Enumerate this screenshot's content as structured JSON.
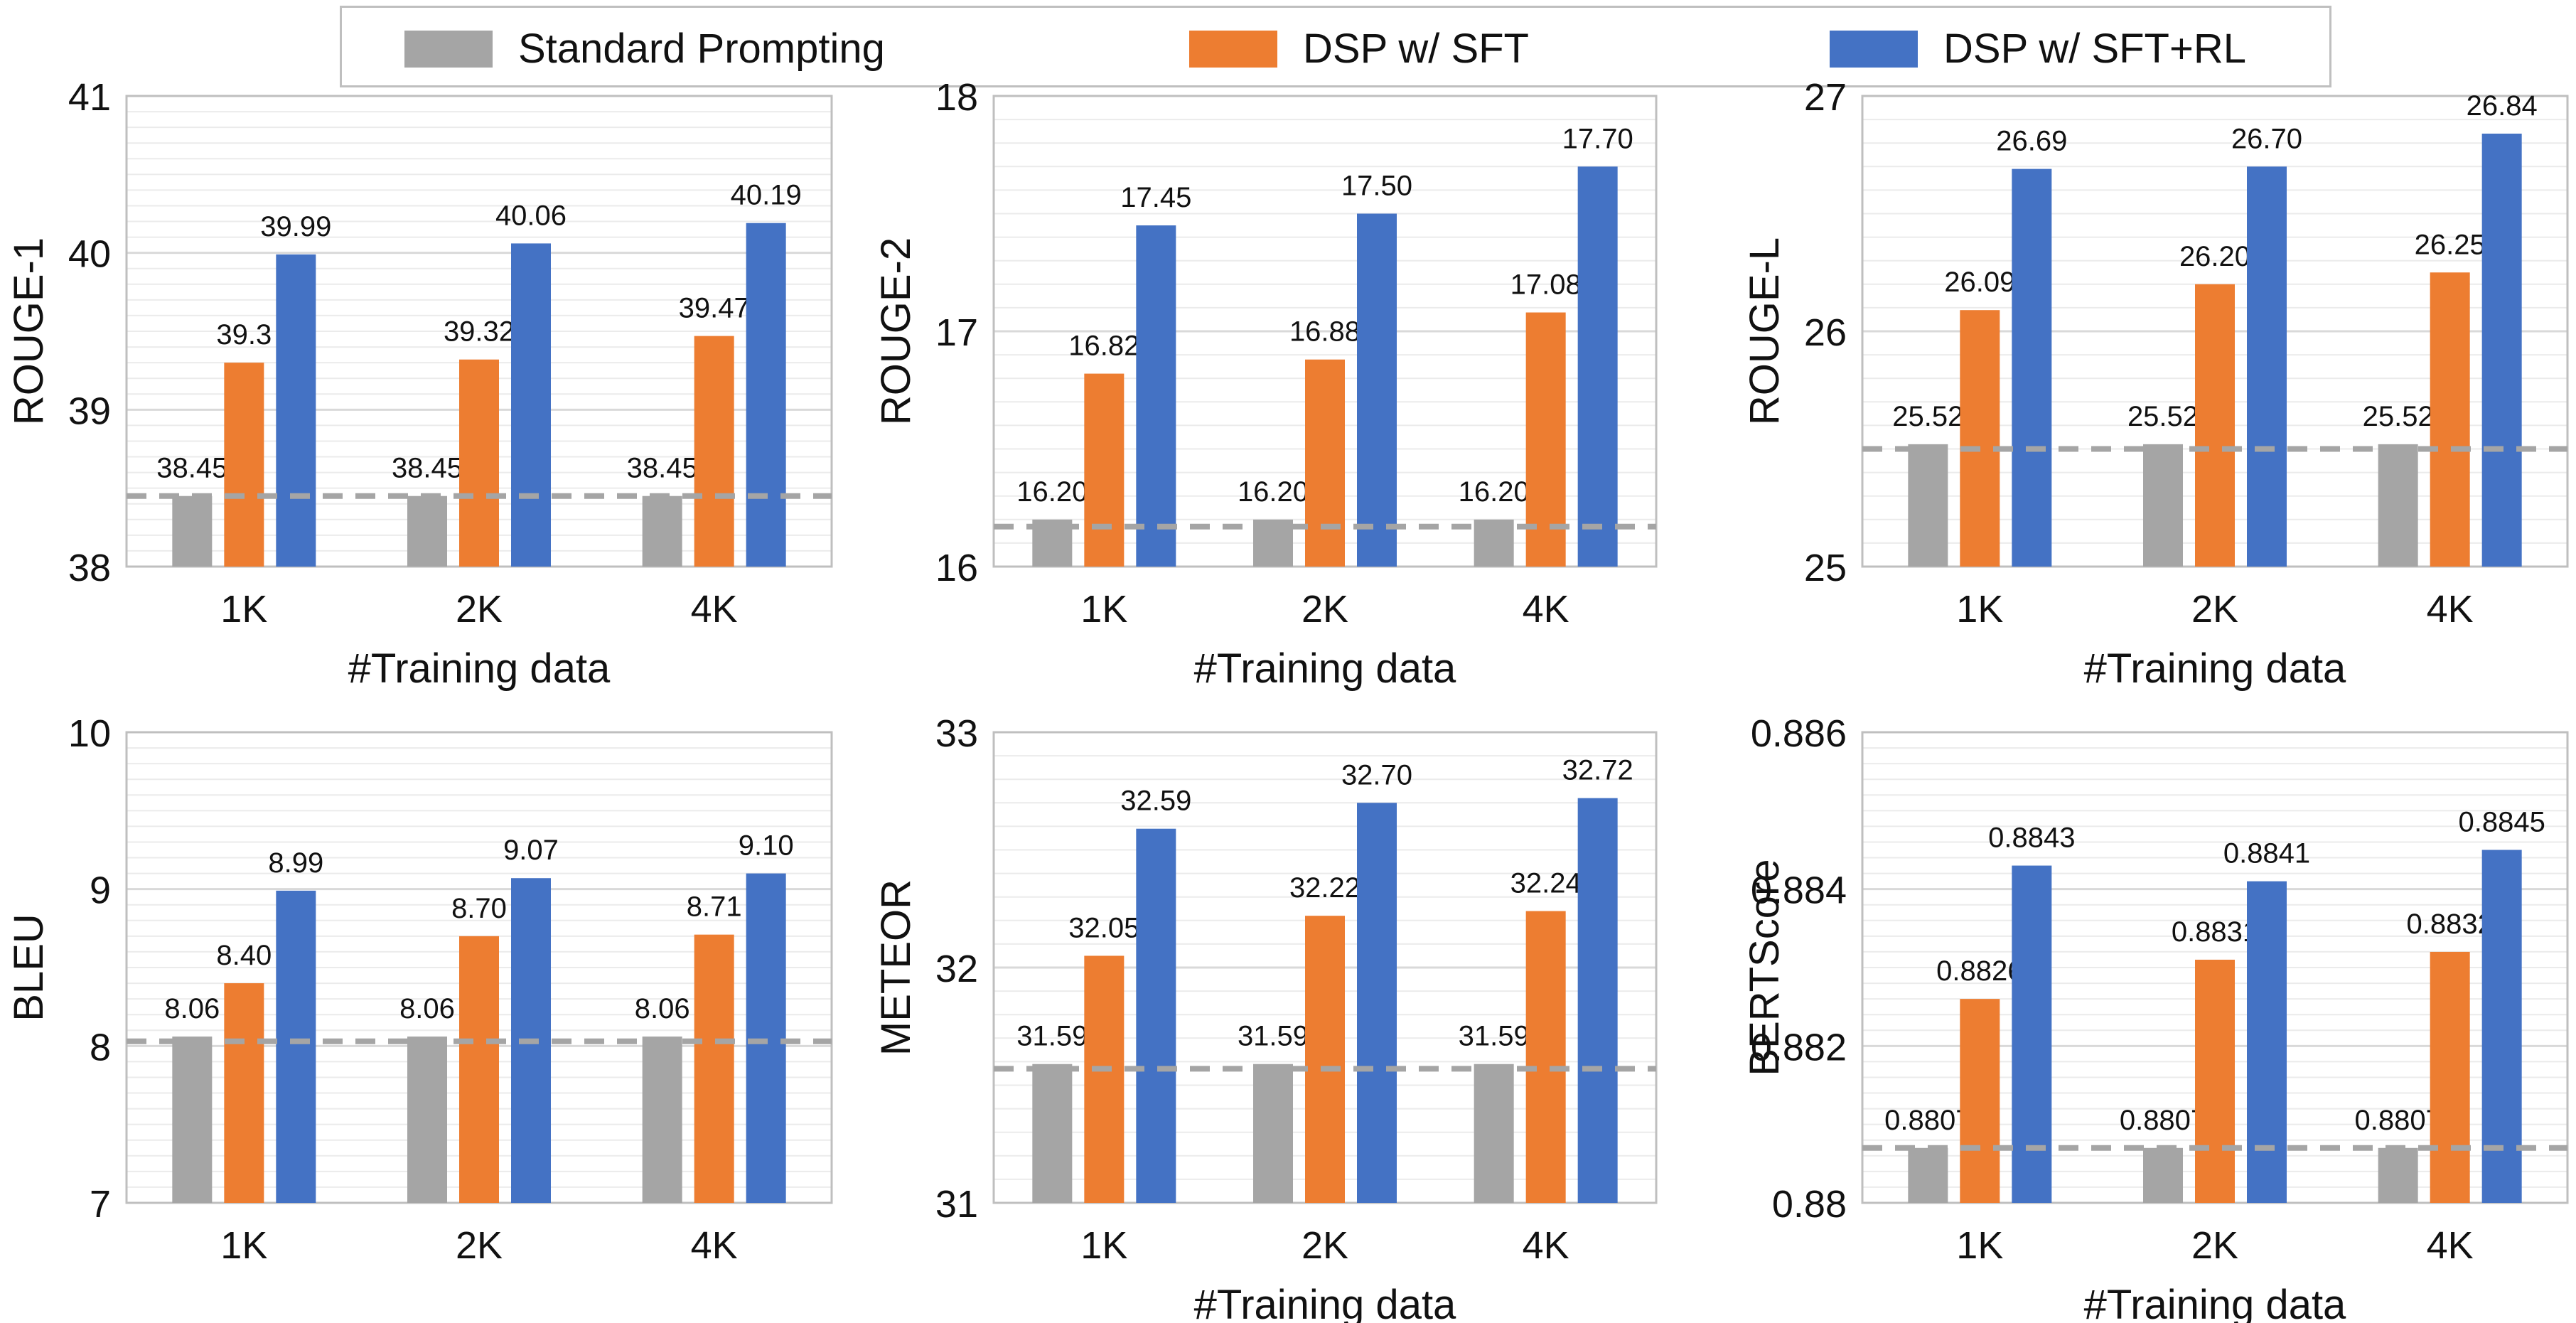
{
  "legend": {
    "items": [
      {
        "label": "Standard Prompting",
        "color": "#a5a5a5"
      },
      {
        "label": "DSP w/ SFT",
        "color": "#ed7d31"
      },
      {
        "label": "DSP w/ SFT+RL",
        "color": "#4472c4"
      }
    ]
  },
  "chart_data": [
    {
      "type": "bar",
      "ylabel": "ROUGE-1",
      "xlabel": "#Training data",
      "categories": [
        "1K",
        "2K",
        "4K"
      ],
      "ylim": [
        38,
        41
      ],
      "yticks": [
        "38",
        "39",
        "40",
        "41"
      ],
      "baseline": 38.45,
      "series": [
        {
          "name": "Standard Prompting",
          "values": [
            38.45,
            38.45,
            38.45
          ],
          "labels": [
            "38.45",
            "38.45",
            "38.45"
          ]
        },
        {
          "name": "DSP w/ SFT",
          "values": [
            39.3,
            39.32,
            39.47
          ],
          "labels": [
            "39.3",
            "39.32",
            "39.47"
          ]
        },
        {
          "name": "DSP w/ SFT+RL",
          "values": [
            39.99,
            40.06,
            40.19
          ],
          "labels": [
            "39.99",
            "40.06",
            "40.19"
          ]
        }
      ]
    },
    {
      "type": "bar",
      "ylabel": "ROUGE-2",
      "xlabel": "#Training data",
      "categories": [
        "1K",
        "2K",
        "4K"
      ],
      "ylim": [
        16,
        18
      ],
      "yticks": [
        "16",
        "17",
        "18"
      ],
      "baseline": 16.17,
      "series": [
        {
          "name": "Standard Prompting",
          "values": [
            16.2,
            16.2,
            16.2
          ],
          "labels": [
            "16.20",
            "16.20",
            "16.20"
          ]
        },
        {
          "name": "DSP w/ SFT",
          "values": [
            16.82,
            16.88,
            17.08
          ],
          "labels": [
            "16.82",
            "16.88",
            "17.08"
          ]
        },
        {
          "name": "DSP w/ SFT+RL",
          "values": [
            17.45,
            17.5,
            17.7
          ],
          "labels": [
            "17.45",
            "17.50",
            "17.70"
          ]
        }
      ]
    },
    {
      "type": "bar",
      "ylabel": "ROUGE-L",
      "xlabel": "#Training data",
      "categories": [
        "1K",
        "2K",
        "4K"
      ],
      "ylim": [
        25,
        27
      ],
      "yticks": [
        "25",
        "26",
        "27"
      ],
      "baseline": 25.5,
      "series": [
        {
          "name": "Standard Prompting",
          "values": [
            25.52,
            25.52,
            25.52
          ],
          "labels": [
            "25.52",
            "25.52",
            "25.52"
          ]
        },
        {
          "name": "DSP w/ SFT",
          "values": [
            26.09,
            26.2,
            26.25
          ],
          "labels": [
            "26.09",
            "26.20",
            "26.25"
          ]
        },
        {
          "name": "DSP w/ SFT+RL",
          "values": [
            26.69,
            26.7,
            26.84
          ],
          "labels": [
            "26.69",
            "26.70",
            "26.84"
          ]
        }
      ]
    },
    {
      "type": "bar",
      "ylabel": "BLEU",
      "xlabel": "",
      "categories": [
        "1K",
        "2K",
        "4K"
      ],
      "ylim": [
        7,
        10
      ],
      "yticks": [
        "7",
        "8",
        "9",
        "10"
      ],
      "baseline": 8.03,
      "series": [
        {
          "name": "Standard Prompting",
          "values": [
            8.06,
            8.06,
            8.06
          ],
          "labels": [
            "8.06",
            "8.06",
            "8.06"
          ]
        },
        {
          "name": "DSP w/ SFT",
          "values": [
            8.4,
            8.7,
            8.71
          ],
          "labels": [
            "8.40",
            "8.70",
            "8.71"
          ]
        },
        {
          "name": "DSP w/ SFT+RL",
          "values": [
            8.99,
            9.07,
            9.1
          ],
          "labels": [
            "8.99",
            "9.07",
            "9.10"
          ]
        }
      ]
    },
    {
      "type": "bar",
      "ylabel": "METEOR",
      "xlabel": "#Training data",
      "categories": [
        "1K",
        "2K",
        "4K"
      ],
      "ylim": [
        31,
        33
      ],
      "yticks": [
        "31",
        "32",
        "33"
      ],
      "baseline": 31.57,
      "series": [
        {
          "name": "Standard Prompting",
          "values": [
            31.59,
            31.59,
            31.59
          ],
          "labels": [
            "31.59",
            "31.59",
            "31.59"
          ]
        },
        {
          "name": "DSP w/ SFT",
          "values": [
            32.05,
            32.22,
            32.24
          ],
          "labels": [
            "32.05",
            "32.22",
            "32.24"
          ]
        },
        {
          "name": "DSP w/ SFT+RL",
          "values": [
            32.59,
            32.7,
            32.72
          ],
          "labels": [
            "32.59",
            "32.70",
            "32.72"
          ]
        }
      ]
    },
    {
      "type": "bar",
      "ylabel": "BERTScore",
      "xlabel": "#Training data",
      "categories": [
        "1K",
        "2K",
        "4K"
      ],
      "ylim": [
        0.88,
        0.886
      ],
      "yticks": [
        "0.88",
        "0.882",
        "0.884",
        "0.886"
      ],
      "baseline": 0.8807,
      "series": [
        {
          "name": "Standard Prompting",
          "values": [
            0.8807,
            0.8807,
            0.8807
          ],
          "labels": [
            "0.8807",
            "0.8807",
            "0.8807"
          ]
        },
        {
          "name": "DSP w/ SFT",
          "values": [
            0.8826,
            0.8831,
            0.8832
          ],
          "labels": [
            "0.8826",
            "0.8831",
            "0.8832"
          ]
        },
        {
          "name": "DSP w/ SFT+RL",
          "values": [
            0.8843,
            0.8841,
            0.8845
          ],
          "labels": [
            "0.8843",
            "0.8841",
            "0.8845"
          ]
        }
      ]
    }
  ]
}
